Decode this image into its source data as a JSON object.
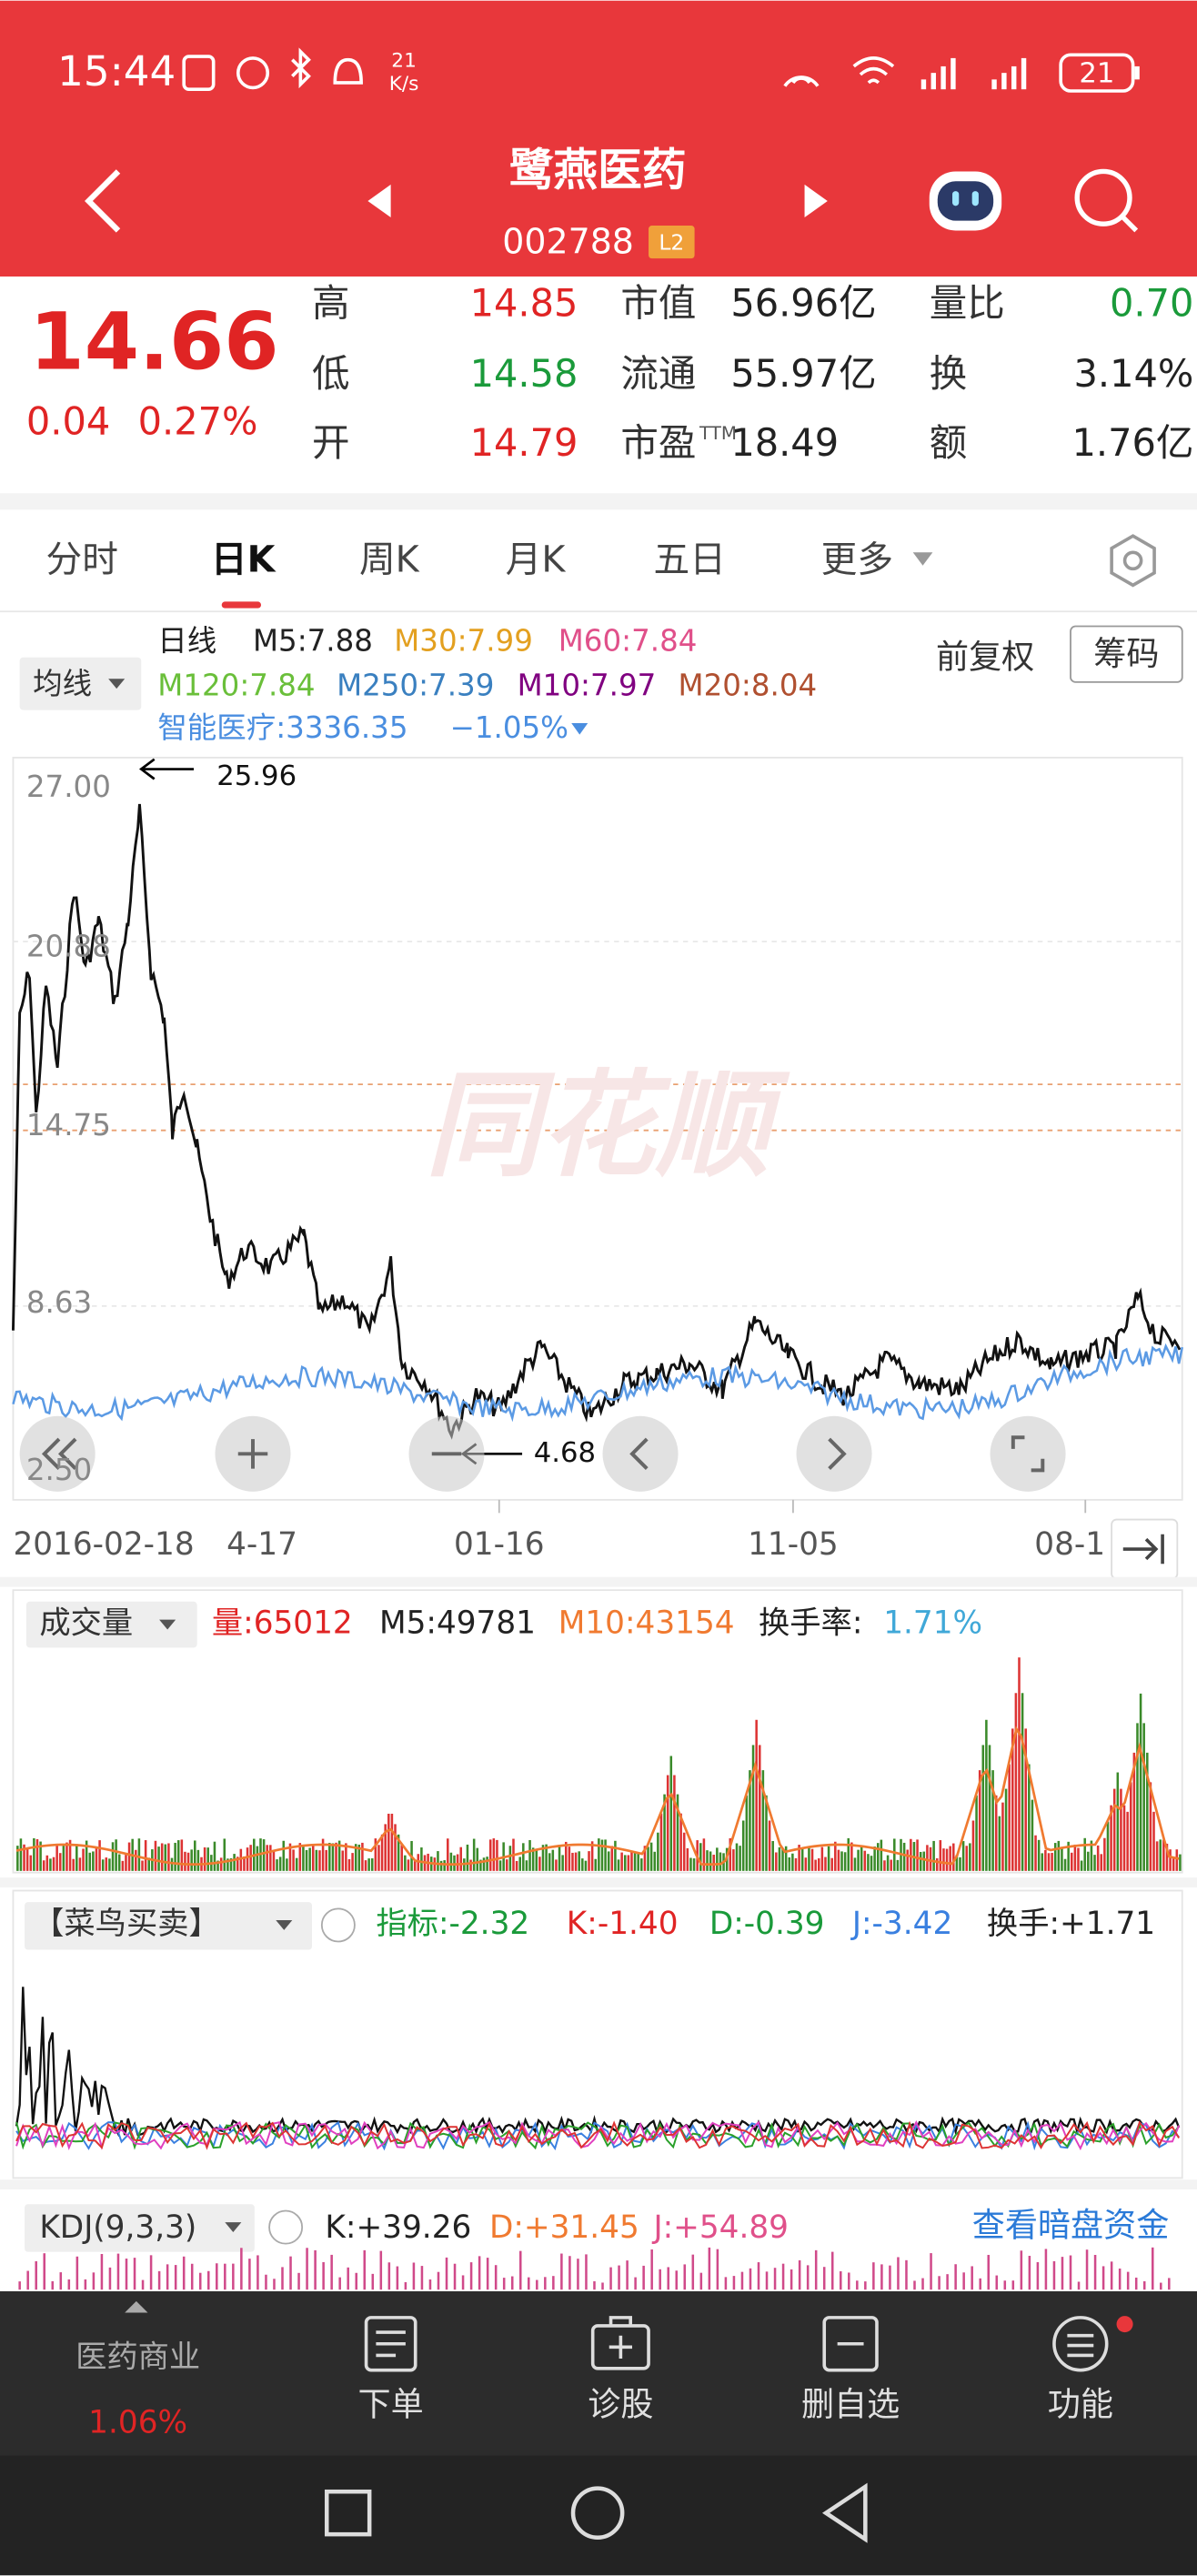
{
  "status_bar": {
    "time": "15:44",
    "speed": "21",
    "speed_unit": "K/s",
    "battery": "21"
  },
  "header": {
    "title": "鹭燕医药",
    "code": "002788",
    "badge": "L2"
  },
  "quote": {
    "price": "14.66",
    "change": "0.04",
    "change_pct": "0.27%",
    "stats": [
      [
        {
          "label": "高",
          "value": "14.85"
        },
        {
          "label": "市值",
          "value": "56.96亿"
        },
        {
          "label": "量比",
          "value": "0.70"
        }
      ],
      [
        {
          "label": "低",
          "value": "14.58"
        },
        {
          "label": "流通",
          "value": "55.97亿"
        },
        {
          "label": "换",
          "value": "3.14%"
        }
      ],
      [
        {
          "label": "开",
          "value": "14.79"
        },
        {
          "label": "市盈",
          "sup": "TTM",
          "value": "18.49"
        },
        {
          "label": "额",
          "value": "1.76亿"
        }
      ]
    ]
  },
  "tabs": [
    "分时",
    "日K",
    "周K",
    "月K",
    "五日",
    "更多"
  ],
  "ma_legend": {
    "button": "均线",
    "period": "日线",
    "row1": [
      "M5:7.88",
      "M30:7.99",
      "M60:7.84"
    ],
    "row2": [
      "M120:7.84",
      "M250:7.39",
      "M10:7.97",
      "M20:8.04"
    ],
    "sector": "智能医疗:3336.35",
    "sector_change": "−1.05%",
    "adjust": "前复权",
    "chips": "筹码"
  },
  "price_chart": {
    "y_labels": [
      "27.00",
      "20.88",
      "14.75",
      "8.63",
      "2.50"
    ],
    "high_label": "25.96",
    "low_label": "4.68",
    "watermark": "同花顺",
    "dates": [
      "2016-02-18",
      "4-17",
      "01-16",
      "11-05",
      "08-1"
    ]
  },
  "volume": {
    "button": "成交量",
    "vol": "量:65012",
    "m5": "M5:49781",
    "m10": "M10:43154",
    "turnover_label": "换手率:",
    "turnover": "1.71%"
  },
  "indicator": {
    "button": "【菜鸟买卖】",
    "index": "指标:-2.32",
    "k": "K:-1.40",
    "d": "D:-0.39",
    "j": "J:-3.42",
    "turnover": "换手:+1.71"
  },
  "kdj": {
    "button": "KDJ(9,3,3)",
    "k": "K:+39.26",
    "d": "D:+31.45",
    "j": "J:+54.89",
    "link": "查看暗盘资金"
  },
  "bottom_nav": {
    "sector": "医药商业",
    "sector_change": "1.06%",
    "items": [
      "下单",
      "诊股",
      "删自选",
      "功能"
    ]
  }
}
